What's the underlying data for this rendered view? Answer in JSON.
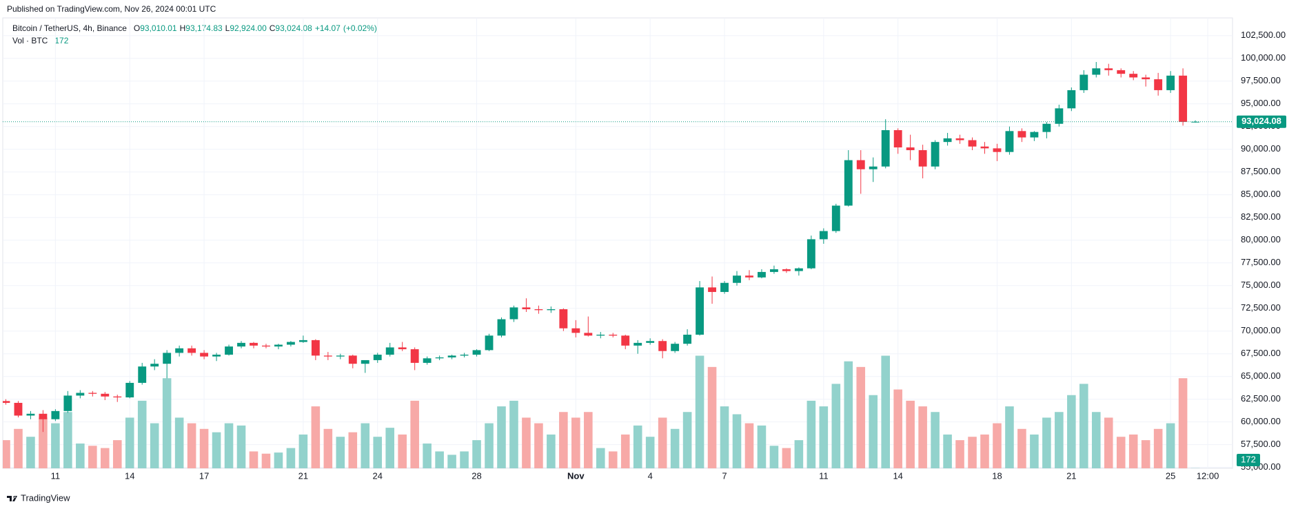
{
  "header": "Published on TradingView.com, Nov 26, 2024 00:01 UTC",
  "footer": "TradingView",
  "chart_data": {
    "type": "candlestick",
    "legend": {
      "symbol": "Bitcoin / TetherUS, 4h, Binance",
      "keys": [
        "O",
        "H",
        "L",
        "C"
      ],
      "value_labels": [
        "93,010.01",
        "93,174.83",
        "92,924.00",
        "93,024.08"
      ],
      "change": {
        "value": 14.07,
        "label": "+14.07"
      },
      "change_pct": {
        "value": 0.02,
        "label": "(+0.02%)"
      },
      "volume_title": "Vol · BTC"
    },
    "up_color": "#089981",
    "down_color": "#f23645",
    "volume_up_color": "#92d2cc",
    "volume_down_color": "#f7a9a7",
    "last_price": {
      "value": 93024.08,
      "label": "93,024.08"
    },
    "xlim": [
      "2024-10-08T21:00",
      "2024-11-27T12:00"
    ],
    "ylim": [
      54900,
      104450
    ],
    "vlim": [
      0,
      400000
    ],
    "grid": true,
    "yticks": [
      {
        "value": 55000,
        "label": "55,000.00"
      },
      {
        "value": 57500,
        "label": "57,500.00"
      },
      {
        "value": 60000,
        "label": "60,000.00"
      },
      {
        "value": 62500,
        "label": "62,500.00"
      },
      {
        "value": 65000,
        "label": "65,000.00"
      },
      {
        "value": 67500,
        "label": "67,500.00"
      },
      {
        "value": 70000,
        "label": "70,000.00"
      },
      {
        "value": 72500,
        "label": "72,500.00"
      },
      {
        "value": 75000,
        "label": "75,000.00"
      },
      {
        "value": 77500,
        "label": "77,500.00"
      },
      {
        "value": 80000,
        "label": "80,000.00"
      },
      {
        "value": 82500,
        "label": "82,500.00"
      },
      {
        "value": 85000,
        "label": "85,000.00"
      },
      {
        "value": 87500,
        "label": "87,500.00"
      },
      {
        "value": 90000,
        "label": "90,000.00"
      },
      {
        "value": 92500,
        "label": "92,500.00"
      },
      {
        "value": 95000,
        "label": "95,000.00"
      },
      {
        "value": 97500,
        "label": "97,500.00"
      },
      {
        "value": 100000,
        "label": "100,000.00"
      },
      {
        "value": 102500,
        "label": "102,500.00"
      }
    ],
    "xticks": [
      {
        "value": "2024-10-11T00:00",
        "label": "11"
      },
      {
        "value": "2024-10-14T00:00",
        "label": "14"
      },
      {
        "value": "2024-10-17T00:00",
        "label": "17"
      },
      {
        "value": "2024-10-21T00:00",
        "label": "21"
      },
      {
        "value": "2024-10-24T00:00",
        "label": "24"
      },
      {
        "value": "2024-10-28T00:00",
        "label": "28"
      },
      {
        "value": "2024-11-01T00:00",
        "label": "Nov"
      },
      {
        "value": "2024-11-04T00:00",
        "label": "4"
      },
      {
        "value": "2024-11-07T00:00",
        "label": "7"
      },
      {
        "value": "2024-11-11T00:00",
        "label": "11"
      },
      {
        "value": "2024-11-14T00:00",
        "label": "14"
      },
      {
        "value": "2024-11-18T00:00",
        "label": "18"
      },
      {
        "value": "2024-11-21T00:00",
        "label": "21"
      },
      {
        "value": "2024-11-25T00:00",
        "label": "25"
      },
      {
        "value": "2024-11-26T12:00",
        "label": "12:00"
      }
    ],
    "x": [
      "2024-10-09T00:00",
      "2024-10-09T12:00",
      "2024-10-10T00:00",
      "2024-10-10T12:00",
      "2024-10-11T00:00",
      "2024-10-11T12:00",
      "2024-10-12T00:00",
      "2024-10-12T12:00",
      "2024-10-13T00:00",
      "2024-10-13T12:00",
      "2024-10-14T00:00",
      "2024-10-14T12:00",
      "2024-10-15T00:00",
      "2024-10-15T12:00",
      "2024-10-16T00:00",
      "2024-10-16T12:00",
      "2024-10-17T00:00",
      "2024-10-17T12:00",
      "2024-10-18T00:00",
      "2024-10-18T12:00",
      "2024-10-19T00:00",
      "2024-10-19T12:00",
      "2024-10-20T00:00",
      "2024-10-20T12:00",
      "2024-10-21T00:00",
      "2024-10-21T12:00",
      "2024-10-22T00:00",
      "2024-10-22T12:00",
      "2024-10-23T00:00",
      "2024-10-23T12:00",
      "2024-10-24T00:00",
      "2024-10-24T12:00",
      "2024-10-25T00:00",
      "2024-10-25T12:00",
      "2024-10-26T00:00",
      "2024-10-26T12:00",
      "2024-10-27T00:00",
      "2024-10-27T12:00",
      "2024-10-28T00:00",
      "2024-10-28T12:00",
      "2024-10-29T00:00",
      "2024-10-29T12:00",
      "2024-10-30T00:00",
      "2024-10-30T12:00",
      "2024-10-31T00:00",
      "2024-10-31T12:00",
      "2024-11-01T00:00",
      "2024-11-01T12:00",
      "2024-11-02T00:00",
      "2024-11-02T12:00",
      "2024-11-03T00:00",
      "2024-11-03T12:00",
      "2024-11-04T00:00",
      "2024-11-04T12:00",
      "2024-11-05T00:00",
      "2024-11-05T12:00",
      "2024-11-06T00:00",
      "2024-11-06T12:00",
      "2024-11-07T00:00",
      "2024-11-07T12:00",
      "2024-11-08T00:00",
      "2024-11-08T12:00",
      "2024-11-09T00:00",
      "2024-11-09T12:00",
      "2024-11-10T00:00",
      "2024-11-10T12:00",
      "2024-11-11T00:00",
      "2024-11-11T12:00",
      "2024-11-12T00:00",
      "2024-11-12T12:00",
      "2024-11-13T00:00",
      "2024-11-13T12:00",
      "2024-11-14T00:00",
      "2024-11-14T12:00",
      "2024-11-15T00:00",
      "2024-11-15T12:00",
      "2024-11-16T00:00",
      "2024-11-16T12:00",
      "2024-11-17T00:00",
      "2024-11-17T12:00",
      "2024-11-18T00:00",
      "2024-11-18T12:00",
      "2024-11-19T00:00",
      "2024-11-19T12:00",
      "2024-11-20T00:00",
      "2024-11-20T12:00",
      "2024-11-21T00:00",
      "2024-11-21T12:00",
      "2024-11-22T00:00",
      "2024-11-22T12:00",
      "2024-11-23T00:00",
      "2024-11-23T12:00",
      "2024-11-24T00:00",
      "2024-11-24T12:00",
      "2024-11-25T00:00",
      "2024-11-25T12:00",
      "2024-11-26T00:00"
    ],
    "open": [
      62300,
      62100,
      60700,
      60900,
      60300,
      61200,
      62900,
      63200,
      63100,
      62800,
      62700,
      64300,
      66100,
      66400,
      67600,
      68100,
      67600,
      67200,
      67400,
      68300,
      68700,
      68400,
      68300,
      68500,
      68800,
      69000,
      67300,
      67200,
      67300,
      66400,
      66800,
      67400,
      68200,
      68000,
      66500,
      67000,
      67100,
      67300,
      67400,
      67900,
      69500,
      71300,
      72600,
      72400,
      72300,
      72400,
      70300,
      69800,
      69500,
      69600,
      69500,
      68400,
      68700,
      68900,
      67800,
      68600,
      69600,
      74800,
      74300,
      75300,
      76100,
      75900,
      76500,
      76800,
      76600,
      76900,
      80100,
      81000,
      83800,
      88800,
      87800,
      88100,
      92100,
      90200,
      89900,
      88100,
      90800,
      91200,
      91000,
      90300,
      90100,
      89700,
      92000,
      91300,
      91900,
      92800,
      94500,
      96500,
      98200,
      98900,
      98700,
      98300,
      97900,
      97700,
      96500,
      98100,
      93010.01
    ],
    "high": [
      62500,
      62300,
      61200,
      61300,
      61400,
      63400,
      63500,
      63400,
      63300,
      63000,
      64500,
      66500,
      66900,
      67900,
      68400,
      68400,
      67900,
      67600,
      68500,
      68900,
      68800,
      68600,
      68600,
      68900,
      69500,
      69100,
      67700,
      67500,
      67400,
      66700,
      67600,
      68700,
      68800,
      68200,
      67200,
      67300,
      67400,
      67600,
      68000,
      69700,
      71500,
      72800,
      73600,
      72800,
      72700,
      72500,
      71200,
      71600,
      69900,
      69800,
      69600,
      69000,
      69200,
      69100,
      68800,
      70200,
      75500,
      76000,
      75500,
      76600,
      76700,
      76800,
      77200,
      76900,
      77000,
      80500,
      81300,
      84000,
      89900,
      89900,
      89100,
      93300,
      92300,
      91600,
      90500,
      91000,
      91800,
      91600,
      91300,
      90800,
      90600,
      92500,
      92300,
      92000,
      93000,
      94900,
      96800,
      98700,
      99600,
      99400,
      98900,
      98600,
      98200,
      98400,
      98600,
      98900,
      93174.83
    ],
    "low": [
      61900,
      60500,
      60300,
      58900,
      60100,
      61000,
      62600,
      62800,
      62400,
      62200,
      62600,
      64100,
      65700,
      64800,
      67200,
      67300,
      66900,
      66700,
      67300,
      68100,
      68100,
      68100,
      68000,
      68300,
      68700,
      66800,
      66800,
      66900,
      65900,
      65400,
      66500,
      67200,
      67800,
      65700,
      66300,
      66800,
      66900,
      67100,
      67200,
      67800,
      69300,
      71000,
      72100,
      71900,
      72000,
      70000,
      69300,
      69400,
      69200,
      69300,
      68000,
      67500,
      68500,
      67000,
      67600,
      68400,
      69500,
      73000,
      74100,
      75000,
      75600,
      75800,
      76300,
      76400,
      76100,
      76800,
      79600,
      80800,
      83700,
      85100,
      86400,
      87900,
      89500,
      88800,
      86800,
      87800,
      90400,
      90600,
      89900,
      89500,
      88700,
      89400,
      90800,
      90900,
      91200,
      92500,
      94200,
      96200,
      97900,
      98100,
      97900,
      97600,
      96900,
      95900,
      96200,
      92600,
      92924
    ],
    "close": [
      62100,
      60700,
      60900,
      60300,
      61200,
      62900,
      63200,
      63100,
      62800,
      62700,
      64300,
      66100,
      66400,
      67600,
      68100,
      67600,
      67200,
      67400,
      68300,
      68700,
      68400,
      68300,
      68500,
      68800,
      69000,
      67300,
      67200,
      67300,
      66400,
      66800,
      67400,
      68200,
      68000,
      66500,
      67000,
      67100,
      67300,
      67400,
      67900,
      69500,
      71300,
      72600,
      72400,
      72300,
      72400,
      70300,
      69800,
      69500,
      69600,
      69500,
      68400,
      68700,
      68900,
      67800,
      68600,
      69600,
      74800,
      74300,
      75300,
      76100,
      75900,
      76500,
      76800,
      76600,
      76900,
      80100,
      81000,
      83800,
      88800,
      87800,
      88100,
      92100,
      90200,
      89900,
      88100,
      90800,
      91200,
      91000,
      90300,
      90100,
      89700,
      92000,
      91300,
      91900,
      92800,
      94500,
      96500,
      98200,
      98900,
      98700,
      98300,
      97900,
      97700,
      96500,
      98100,
      93010,
      93024.08
    ],
    "volume": [
      25000,
      35000,
      28000,
      45000,
      40000,
      50000,
      22000,
      20000,
      18000,
      25000,
      45000,
      60000,
      40000,
      80000,
      45000,
      40000,
      35000,
      32000,
      40000,
      38000,
      15000,
      13000,
      14000,
      18000,
      30000,
      55000,
      35000,
      28000,
      32000,
      40000,
      28000,
      36000,
      30000,
      60000,
      22000,
      15000,
      12000,
      15000,
      25000,
      40000,
      55000,
      60000,
      45000,
      40000,
      30000,
      50000,
      45000,
      50000,
      18000,
      15000,
      30000,
      38000,
      28000,
      45000,
      35000,
      50000,
      100000,
      90000,
      55000,
      48000,
      40000,
      38000,
      20000,
      18000,
      25000,
      60000,
      55000,
      75000,
      95000,
      90000,
      65000,
      100000,
      70000,
      60000,
      55000,
      50000,
      30000,
      25000,
      28000,
      30000,
      40000,
      55000,
      35000,
      30000,
      45000,
      50000,
      65000,
      75000,
      50000,
      45000,
      28000,
      30000,
      25000,
      35000,
      40000,
      80000,
      172
    ]
  }
}
